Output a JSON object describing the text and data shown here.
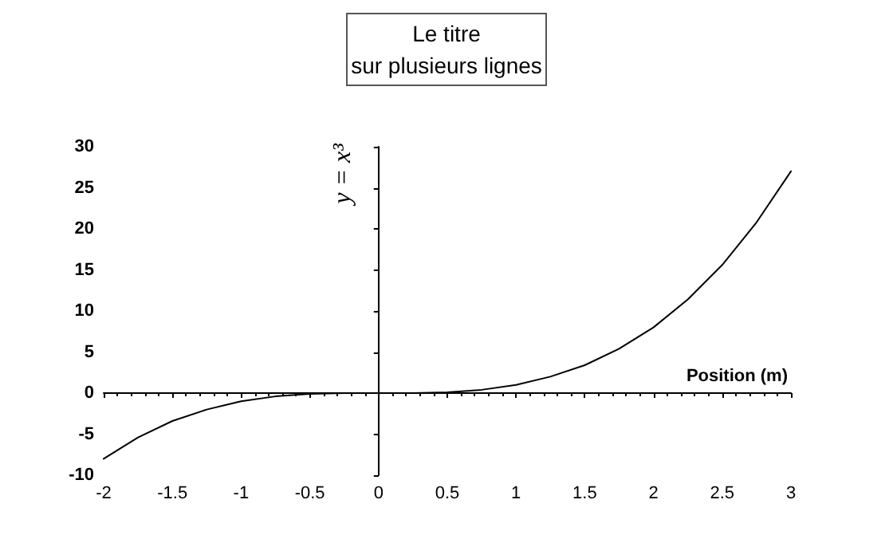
{
  "chart_data": {
    "type": "line",
    "title": "Le titre\nsur plusieurs lignes",
    "xlabel": "Position (m)",
    "ylabel": "y = x³",
    "x": [
      -2,
      -1.75,
      -1.5,
      -1.25,
      -1,
      -0.75,
      -0.5,
      -0.25,
      0,
      0.25,
      0.5,
      0.75,
      1,
      1.25,
      1.5,
      1.75,
      2,
      2.25,
      2.5,
      2.75,
      3
    ],
    "series": [
      {
        "color": "#000000",
        "values": [
          -8,
          -5.4,
          -3.4,
          -2,
          -1,
          -0.4,
          -0.1,
          0,
          0,
          0,
          0.1,
          0.4,
          1,
          2,
          3.4,
          5.4,
          8,
          11.4,
          15.6,
          20.8,
          27
        ]
      }
    ],
    "xlim": [
      -2,
      3
    ],
    "xticks": [
      -2,
      -1.5,
      -1,
      -0.5,
      0,
      0.5,
      1,
      1.5,
      2,
      2.5,
      3
    ],
    "ylim": [
      -10,
      30
    ],
    "yticks": [
      -10,
      -5,
      0,
      5,
      10,
      15,
      20,
      25,
      30
    ],
    "marker": "none",
    "line_style": "solid"
  }
}
